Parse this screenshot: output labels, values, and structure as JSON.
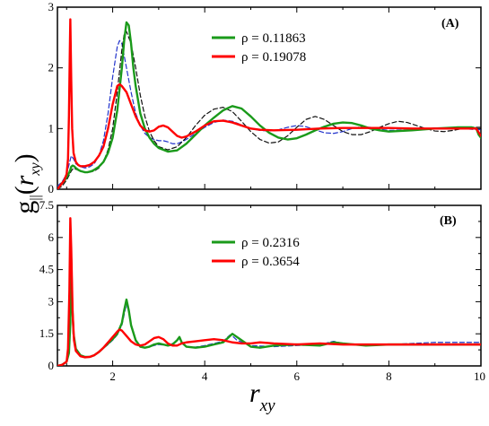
{
  "ylabel": {
    "g": "g",
    "sub": "||",
    "paren_open": "(",
    "r": "r",
    "rsub": "xy",
    "paren_close": ")"
  },
  "xlabel": {
    "r": "r",
    "sub": "xy"
  },
  "chart_data": [
    {
      "type": "line",
      "panel": "A",
      "panel_label": "(A)",
      "xlim": [
        0.8,
        10
      ],
      "ylim": [
        0,
        3
      ],
      "xticks": [
        2,
        4,
        6,
        8
      ],
      "yticks": [
        0,
        1,
        2,
        3
      ],
      "xticks_shown": false,
      "legend_position": "top-center",
      "legend": [
        "ρ = 0.11863",
        "ρ = 0.19078"
      ],
      "colors": {
        "green": "#1a9a1a",
        "red": "#ff0000",
        "blue": "#2233cc",
        "black": "#111111"
      },
      "series": [
        {
          "name": "ρ = 0.11863",
          "color": "#1a9a1a",
          "style": "solid",
          "x": [
            0.8,
            0.85,
            0.9,
            0.95,
            1.0,
            1.03,
            1.06,
            1.08,
            1.1,
            1.13,
            1.16,
            1.2,
            1.25,
            1.3,
            1.35,
            1.4,
            1.45,
            1.5,
            1.55,
            1.6,
            1.7,
            1.8,
            1.9,
            2.0,
            2.1,
            2.2,
            2.25,
            2.3,
            2.35,
            2.4,
            2.45,
            2.5,
            2.6,
            2.7,
            2.8,
            2.9,
            3.0,
            3.2,
            3.4,
            3.6,
            3.8,
            4.0,
            4.2,
            4.4,
            4.6,
            4.8,
            5.0,
            5.2,
            5.4,
            5.6,
            5.8,
            6.0,
            6.2,
            6.4,
            6.6,
            6.8,
            7.0,
            7.2,
            7.4,
            7.6,
            7.8,
            8.0,
            8.5,
            9.0,
            9.5,
            9.8,
            9.9,
            9.95,
            10.0
          ],
          "y": [
            0.0,
            0.05,
            0.1,
            0.14,
            0.2,
            0.24,
            0.28,
            0.32,
            0.37,
            0.39,
            0.38,
            0.35,
            0.32,
            0.3,
            0.29,
            0.28,
            0.28,
            0.29,
            0.3,
            0.32,
            0.37,
            0.45,
            0.6,
            0.85,
            1.3,
            2.0,
            2.45,
            2.75,
            2.7,
            2.4,
            2.0,
            1.7,
            1.25,
            1.0,
            0.85,
            0.75,
            0.68,
            0.62,
            0.64,
            0.75,
            0.9,
            1.05,
            1.18,
            1.3,
            1.37,
            1.33,
            1.2,
            1.05,
            0.93,
            0.85,
            0.82,
            0.84,
            0.9,
            0.97,
            1.03,
            1.08,
            1.1,
            1.09,
            1.05,
            1.0,
            0.97,
            0.95,
            0.97,
            1.0,
            1.02,
            1.02,
            1.0,
            0.9,
            0.85
          ]
        },
        {
          "name": "ρ = 0.19078",
          "color": "#ff0000",
          "style": "solid",
          "x": [
            0.8,
            0.85,
            0.9,
            0.95,
            1.0,
            1.03,
            1.05,
            1.07,
            1.08,
            1.1,
            1.12,
            1.15,
            1.2,
            1.25,
            1.3,
            1.4,
            1.5,
            1.6,
            1.7,
            1.8,
            1.9,
            2.0,
            2.1,
            2.15,
            2.2,
            2.3,
            2.4,
            2.5,
            2.6,
            2.7,
            2.8,
            2.9,
            3.0,
            3.1,
            3.2,
            3.3,
            3.4,
            3.5,
            3.6,
            3.8,
            4.0,
            4.2,
            4.4,
            4.6,
            4.8,
            5.0,
            5.2,
            5.5,
            6.0,
            6.5,
            7.0,
            7.5,
            8.0,
            8.5,
            9.0,
            9.5,
            9.9,
            10.0
          ],
          "y": [
            0.0,
            0.05,
            0.1,
            0.15,
            0.25,
            0.5,
            1.2,
            2.3,
            2.8,
            1.8,
            1.0,
            0.6,
            0.45,
            0.4,
            0.38,
            0.38,
            0.4,
            0.45,
            0.55,
            0.7,
            1.0,
            1.4,
            1.7,
            1.73,
            1.7,
            1.6,
            1.4,
            1.2,
            1.05,
            0.97,
            0.95,
            0.97,
            1.03,
            1.05,
            1.02,
            0.95,
            0.88,
            0.85,
            0.87,
            0.95,
            1.05,
            1.12,
            1.13,
            1.1,
            1.05,
            1.0,
            0.98,
            0.97,
            0.98,
            1.0,
            1.01,
            1.01,
            1.01,
            1.0,
            1.0,
            1.0,
            1.0,
            0.88
          ]
        },
        {
          "name": "",
          "color": "#2233cc",
          "style": "dashed",
          "x": [
            0.8,
            0.9,
            1.0,
            1.05,
            1.1,
            1.15,
            1.2,
            1.3,
            1.4,
            1.5,
            1.6,
            1.7,
            1.8,
            1.9,
            2.0,
            2.1,
            2.15,
            2.2,
            2.3,
            2.4,
            2.5,
            2.6,
            2.7,
            2.8,
            2.9,
            3.0,
            3.1,
            3.2,
            3.3,
            3.4,
            3.5,
            3.6,
            3.8,
            4.0,
            4.2,
            4.4,
            4.6,
            4.8,
            5.0,
            5.2,
            5.4,
            5.6,
            5.8,
            6.0,
            6.2,
            6.4,
            6.6,
            6.8,
            7.0,
            7.2,
            7.4,
            7.6,
            7.8,
            8.0,
            8.5,
            9.0,
            9.5,
            10.0
          ],
          "y": [
            0.05,
            0.12,
            0.25,
            0.4,
            0.55,
            0.5,
            0.42,
            0.37,
            0.35,
            0.37,
            0.42,
            0.55,
            0.8,
            1.25,
            1.85,
            2.35,
            2.45,
            2.4,
            2.0,
            1.6,
            1.25,
            1.05,
            0.92,
            0.85,
            0.82,
            0.8,
            0.8,
            0.78,
            0.75,
            0.75,
            0.78,
            0.82,
            0.92,
            1.02,
            1.1,
            1.14,
            1.12,
            1.06,
            1.0,
            0.97,
            0.96,
            0.98,
            1.02,
            1.05,
            1.03,
            0.98,
            0.93,
            0.92,
            0.95,
            1.0,
            1.03,
            1.02,
            0.99,
            0.97,
            0.98,
            1.01,
            1.0,
            0.98
          ]
        },
        {
          "name": "",
          "color": "#111111",
          "style": "dashed",
          "x": [
            0.8,
            0.9,
            1.0,
            1.1,
            1.15,
            1.2,
            1.3,
            1.4,
            1.5,
            1.6,
            1.7,
            1.8,
            1.9,
            2.0,
            2.1,
            2.2,
            2.25,
            2.3,
            2.4,
            2.5,
            2.6,
            2.7,
            2.8,
            2.9,
            3.0,
            3.2,
            3.4,
            3.6,
            3.8,
            4.0,
            4.2,
            4.4,
            4.6,
            4.8,
            5.0,
            5.2,
            5.4,
            5.6,
            5.8,
            6.0,
            6.2,
            6.4,
            6.6,
            6.8,
            7.0,
            7.2,
            7.4,
            7.6,
            7.8,
            8.0,
            8.2,
            8.4,
            8.6,
            8.8,
            9.0,
            9.2,
            9.4,
            9.6,
            9.8,
            10.0
          ],
          "y": [
            0.0,
            0.05,
            0.15,
            0.3,
            0.35,
            0.33,
            0.3,
            0.28,
            0.28,
            0.3,
            0.35,
            0.45,
            0.65,
            1.0,
            1.6,
            2.3,
            2.55,
            2.6,
            2.4,
            2.0,
            1.55,
            1.2,
            0.95,
            0.8,
            0.7,
            0.65,
            0.7,
            0.85,
            1.05,
            1.22,
            1.32,
            1.35,
            1.28,
            1.12,
            0.95,
            0.82,
            0.76,
            0.78,
            0.88,
            1.02,
            1.15,
            1.2,
            1.15,
            1.05,
            0.95,
            0.9,
            0.9,
            0.95,
            1.02,
            1.08,
            1.12,
            1.1,
            1.05,
            1.0,
            0.96,
            0.95,
            0.97,
            1.0,
            1.02,
            1.02
          ]
        }
      ]
    },
    {
      "type": "line",
      "panel": "B",
      "panel_label": "(B)",
      "xlim": [
        0.8,
        10
      ],
      "ylim": [
        0,
        7.5
      ],
      "xticks": [
        2,
        4,
        6,
        8,
        10
      ],
      "yticks": [
        0,
        1.5,
        3,
        4.5,
        6,
        7.5
      ],
      "yticks_minor": [
        0.75,
        2.25,
        3.75,
        5.25,
        6.75
      ],
      "legend_position": "top-center",
      "legend": [
        "ρ = 0.2316",
        "ρ = 0.3654"
      ],
      "colors": {
        "green": "#1a9a1a",
        "red": "#ff0000",
        "blue": "#2233cc"
      },
      "series": [
        {
          "name": "ρ = 0.2316",
          "color": "#1a9a1a",
          "style": "solid",
          "x": [
            0.8,
            0.9,
            1.0,
            1.05,
            1.08,
            1.1,
            1.12,
            1.15,
            1.2,
            1.3,
            1.4,
            1.5,
            1.6,
            1.7,
            1.8,
            1.9,
            2.0,
            2.1,
            2.2,
            2.25,
            2.3,
            2.35,
            2.4,
            2.5,
            2.6,
            2.7,
            2.8,
            2.9,
            3.0,
            3.1,
            3.2,
            3.3,
            3.4,
            3.45,
            3.5,
            3.6,
            3.8,
            4.0,
            4.2,
            4.4,
            4.6,
            4.8,
            5.0,
            5.2,
            5.5,
            6.0,
            6.5,
            6.8,
            7.0,
            7.5,
            8.0,
            8.5,
            9.0,
            9.5,
            10.0
          ],
          "y": [
            0.0,
            0.05,
            0.2,
            0.6,
            2.0,
            5.0,
            3.0,
            1.5,
            0.8,
            0.5,
            0.42,
            0.42,
            0.5,
            0.65,
            0.85,
            1.05,
            1.25,
            1.5,
            2.0,
            2.6,
            3.1,
            2.6,
            1.9,
            1.2,
            0.9,
            0.85,
            0.9,
            1.0,
            1.05,
            1.0,
            0.95,
            1.0,
            1.2,
            1.35,
            1.1,
            0.9,
            0.85,
            0.9,
            1.0,
            1.1,
            1.5,
            1.2,
            0.9,
            0.85,
            0.95,
            1.0,
            0.95,
            1.1,
            1.05,
            0.95,
            1.0,
            1.0,
            1.0,
            1.0,
            1.0
          ]
        },
        {
          "name": "ρ = 0.3654",
          "color": "#ff0000",
          "style": "solid",
          "x": [
            0.8,
            0.9,
            1.0,
            1.03,
            1.06,
            1.08,
            1.1,
            1.13,
            1.16,
            1.2,
            1.3,
            1.4,
            1.5,
            1.6,
            1.7,
            1.8,
            1.9,
            2.0,
            2.1,
            2.15,
            2.2,
            2.3,
            2.4,
            2.5,
            2.6,
            2.7,
            2.8,
            2.9,
            3.0,
            3.1,
            3.2,
            3.3,
            3.4,
            3.5,
            3.6,
            3.8,
            4.0,
            4.2,
            4.4,
            4.6,
            4.8,
            5.0,
            5.2,
            5.5,
            6.0,
            6.5,
            7.0,
            7.5,
            8.0,
            8.5,
            9.0,
            9.5,
            10.0
          ],
          "y": [
            0.0,
            0.05,
            0.2,
            0.8,
            3.5,
            6.9,
            5.5,
            2.5,
            1.2,
            0.7,
            0.45,
            0.4,
            0.42,
            0.5,
            0.65,
            0.85,
            1.1,
            1.35,
            1.6,
            1.7,
            1.65,
            1.4,
            1.15,
            1.0,
            0.95,
            1.0,
            1.15,
            1.3,
            1.35,
            1.25,
            1.05,
            0.95,
            0.95,
            1.05,
            1.1,
            1.15,
            1.2,
            1.25,
            1.2,
            1.1,
            1.05,
            1.05,
            1.1,
            1.05,
            1.0,
            1.05,
            1.0,
            1.0,
            1.0,
            1.0,
            1.0,
            1.0,
            1.0
          ]
        },
        {
          "name": "",
          "color": "#2233cc",
          "style": "dashed",
          "x": [
            0.8,
            0.9,
            1.0,
            1.05,
            1.08,
            1.1,
            1.12,
            1.15,
            1.2,
            1.3,
            1.4,
            1.5,
            1.6,
            1.7,
            1.8,
            1.9,
            2.0,
            2.1,
            2.2,
            2.25,
            2.3,
            2.35,
            2.4,
            2.5,
            2.6,
            2.7,
            2.8,
            3.0,
            3.2,
            3.4,
            3.45,
            3.5,
            3.6,
            3.8,
            4.0,
            4.2,
            4.4,
            4.55,
            4.6,
            4.7,
            5.0,
            5.5,
            6.0,
            6.5,
            6.8,
            7.0,
            7.5,
            8.0,
            8.5,
            9.0,
            9.5,
            10.0
          ],
          "y": [
            0.0,
            0.05,
            0.2,
            0.6,
            1.8,
            4.6,
            2.8,
            1.4,
            0.75,
            0.48,
            0.4,
            0.4,
            0.48,
            0.62,
            0.82,
            1.0,
            1.2,
            1.45,
            1.9,
            2.4,
            2.9,
            2.5,
            1.85,
            1.15,
            0.88,
            0.85,
            0.9,
            1.0,
            0.95,
            1.15,
            1.3,
            1.05,
            0.9,
            0.88,
            0.95,
            1.05,
            1.15,
            1.45,
            1.4,
            1.2,
            0.95,
            0.9,
            0.95,
            1.0,
            1.15,
            1.05,
            0.95,
            1.0,
            1.05,
            1.1,
            1.1,
            1.1
          ]
        }
      ]
    }
  ]
}
